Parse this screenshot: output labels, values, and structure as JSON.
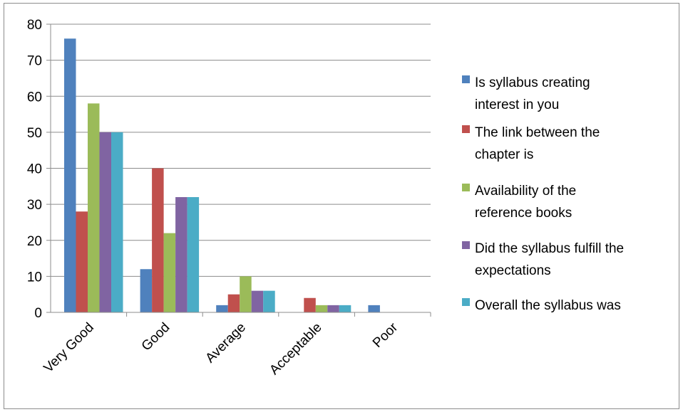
{
  "chart_data": {
    "type": "bar",
    "title": "",
    "xlabel": "",
    "ylabel": "",
    "ylim": [
      0,
      80
    ],
    "yticks": [
      0,
      10,
      20,
      30,
      40,
      50,
      60,
      70,
      80
    ],
    "grid": true,
    "legend_position": "right",
    "categories": [
      "Very Good",
      "Good",
      "Average",
      "Acceptable",
      "Poor"
    ],
    "series": [
      {
        "name": "Is syllabus creating interest in you",
        "legend_lines": [
          "Is syllabus creating",
          "interest in you"
        ],
        "color": "#4F81BD",
        "values": [
          76,
          12,
          2,
          0,
          2
        ]
      },
      {
        "name": "The link between the chapter is",
        "legend_lines": [
          "The link between the",
          "chapter is"
        ],
        "color": "#C0504D",
        "values": [
          28,
          40,
          5,
          4,
          0
        ]
      },
      {
        "name": "Availability of the reference books",
        "legend_lines": [
          "Availability of the",
          "reference books"
        ],
        "color": "#9BBB59",
        "values": [
          58,
          22,
          10,
          2,
          0
        ]
      },
      {
        "name": "Did the syllabus fulfill the expectations",
        "legend_lines": [
          "Did the syllabus fulfill the",
          "expectations"
        ],
        "color": "#8064A2",
        "values": [
          50,
          32,
          6,
          2,
          0
        ]
      },
      {
        "name": "Overall the syllabus was",
        "legend_lines": [
          "Overall the syllabus was"
        ],
        "color": "#4BACC6",
        "values": [
          50,
          32,
          6,
          2,
          0
        ]
      }
    ]
  }
}
